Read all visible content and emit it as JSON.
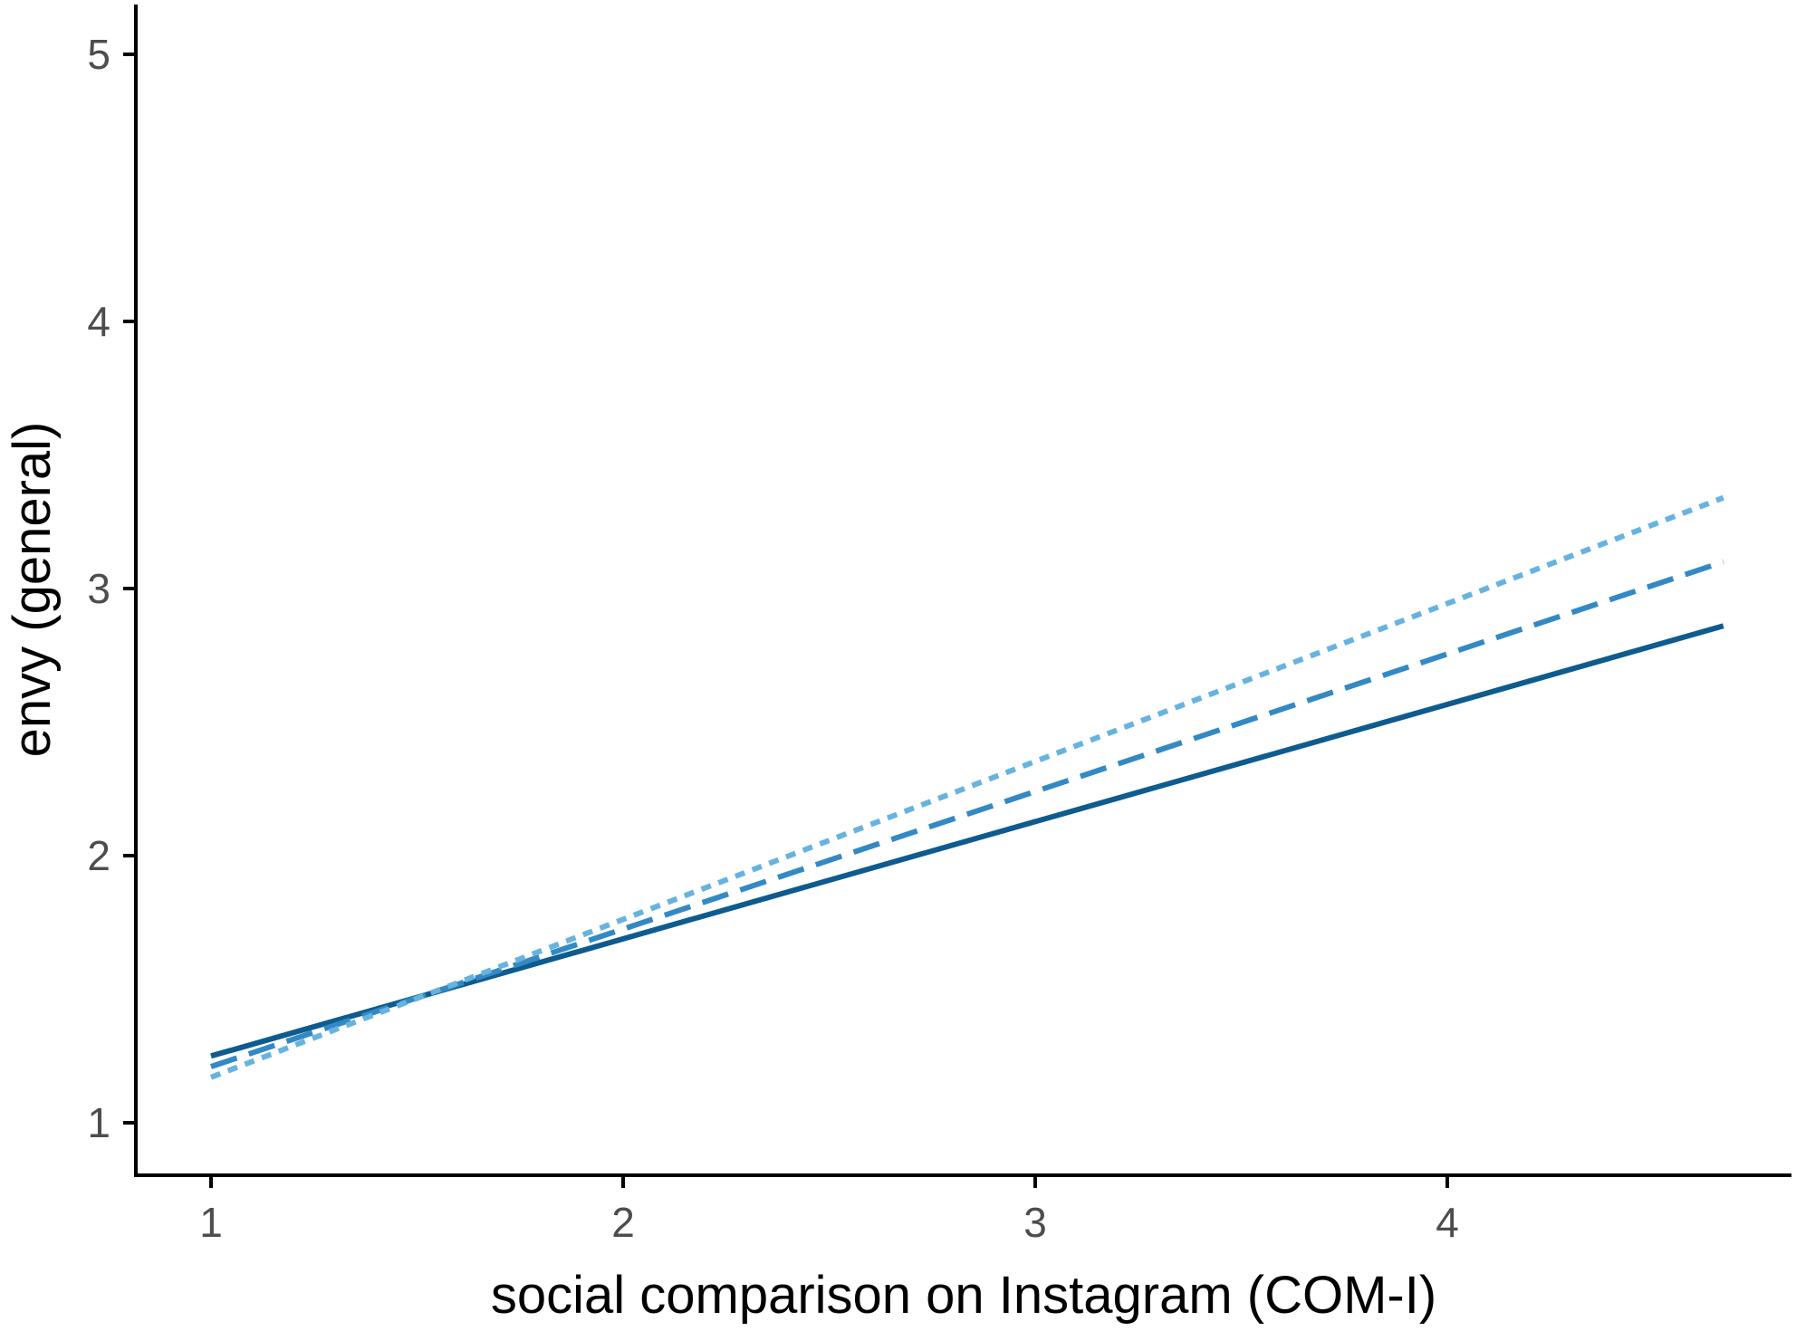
{
  "chart_data": {
    "type": "line",
    "title": "",
    "xlabel": "social comparison on Instagram (COM-I)",
    "ylabel": "envy (general)",
    "xlim": [
      0.82,
      4.9
    ],
    "ylim": [
      0.8,
      5.2
    ],
    "x_ticks": [
      1,
      2,
      3,
      4
    ],
    "y_ticks": [
      1,
      2,
      3,
      4,
      5
    ],
    "grid": false,
    "legend": "none",
    "series": [
      {
        "x": [
          1,
          4.67
        ],
        "values": [
          1.25,
          2.86
        ],
        "color": "#0e5b8f",
        "dash": "solid"
      },
      {
        "x": [
          1,
          4.67
        ],
        "values": [
          1.21,
          3.1
        ],
        "color": "#3389c4",
        "dash": "dashed"
      },
      {
        "x": [
          1,
          4.67
        ],
        "values": [
          1.17,
          3.34
        ],
        "color": "#67b3e0",
        "dash": "dotted"
      }
    ]
  }
}
